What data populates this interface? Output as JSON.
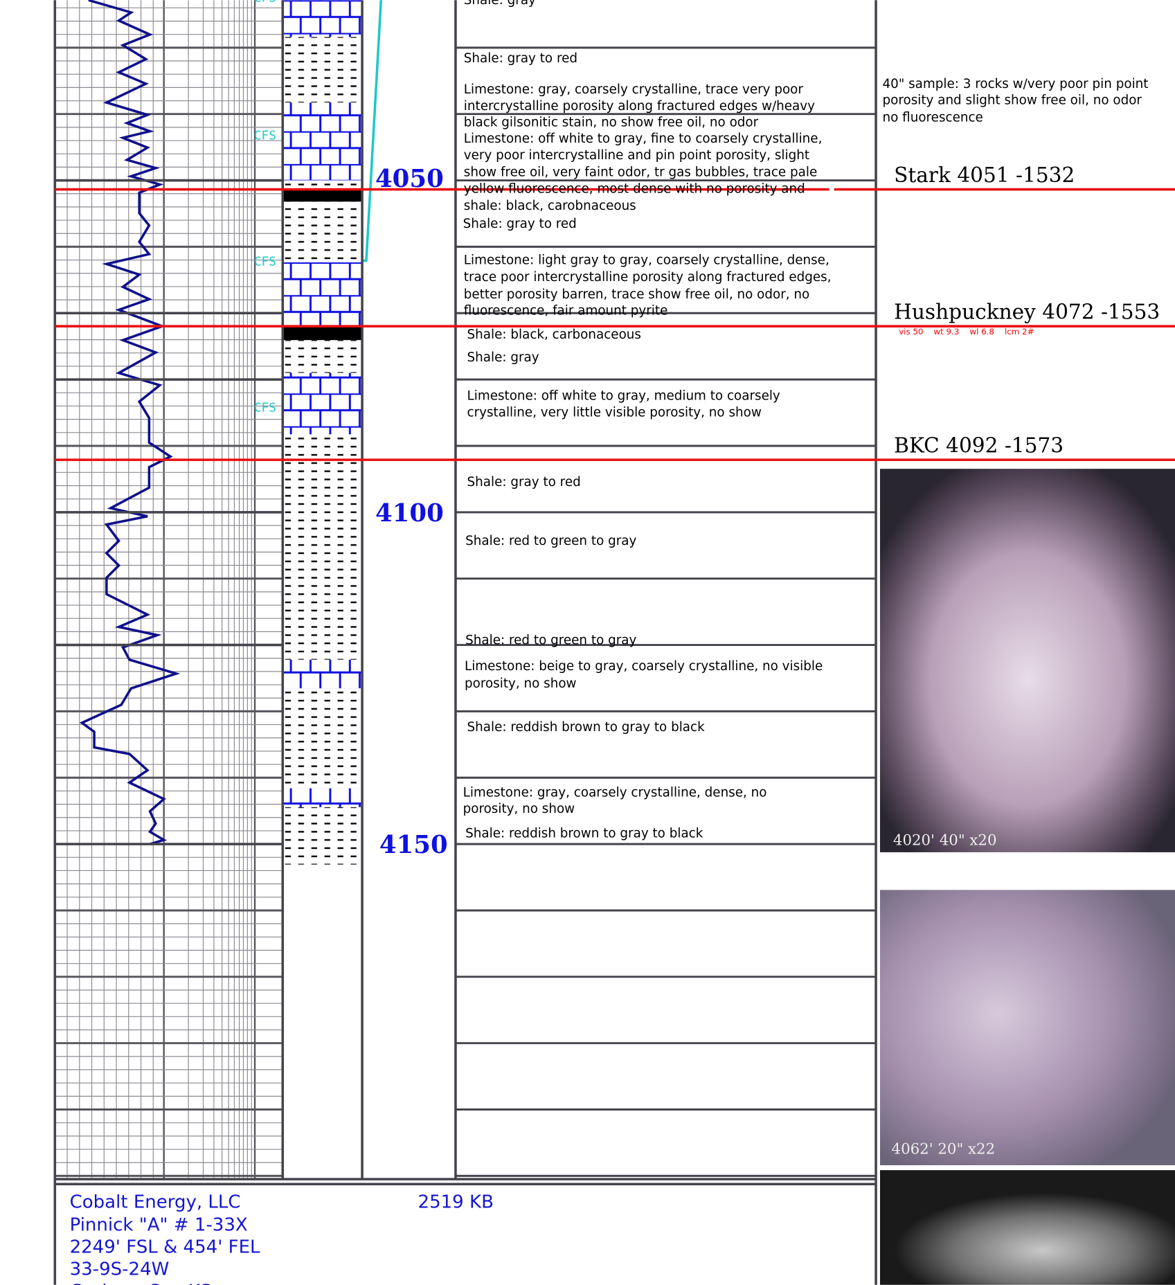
{
  "depth_labels": [
    "4050",
    "4100",
    "4150"
  ],
  "cfs_labels": [
    "CFS",
    "CFS",
    "CFS",
    "CFS"
  ],
  "descriptions": [
    [
      "Shale: gray"
    ],
    [
      "Shale: gray to red"
    ],
    [
      "Limestone: gray, coarsely crystalline, trace very poor",
      "intercrystalline porosity along fractured edges w/heavy",
      "black gilsonitic stain, no show free oil, no odor"
    ],
    [
      "Limestone: off white to gray, fine to coarsely crystalline,",
      "very poor intercrystalline and pin point porosity, slight",
      "show free oil, very faint odor, tr gas bubbles, trace pale",
      "yellow fluorescence, most dense with no porosity and",
      "shale: black, carobnaceous"
    ],
    [
      "Shale: gray to red"
    ],
    [
      "Limestone: light gray to gray, coarsely crystalline, dense,",
      "trace poor intercrystalline porosity along fractured edges,",
      "better porosity barren, trace show free oil, no odor, no",
      "fluorescence, fair amount pyrite"
    ],
    [
      "Shale: black, carbonaceous"
    ],
    [
      "Shale: gray"
    ],
    [
      "Limestone: off white to gray, medium to coarsely",
      "crystalline, very little visible porosity, no show"
    ],
    [
      "Shale: gray to red"
    ],
    [
      "Shale: red to green to gray"
    ],
    [
      "Shale: red to green to gray"
    ],
    [
      "Limestone: beige to gray, coarsely crystalline, no visible",
      "porosity, no show"
    ],
    [
      "Shale: reddish brown to gray to black"
    ],
    [
      "Limestone: gray, coarsely crystalline, dense, no",
      "porosity, no show"
    ],
    [
      "Shale: reddish brown to gray to black"
    ]
  ],
  "sample_note": [
    "40\" sample: 3 rocks w/very poor pin point",
    "porosity and slight show free oil, no odor",
    "no fluorescence"
  ],
  "tops": [
    "Stark 4051 -1532",
    "Hushpuckney 4072 -1553",
    "BKC 4092 -1573"
  ],
  "mud_properties": "vis 50    wt 9.3    wl 6.8    lcm 2#",
  "photo_captions": [
    "4020' 40\" x20",
    "4062' 20\" x22"
  ],
  "header": {
    "lines": [
      "Cobalt Energy, LLC",
      "Pinnick \"A\" # 1-33X",
      "2249' FSL & 454' FEL",
      "33-9S-24W",
      "Graham Co., KS"
    ],
    "elevation": "2519 KB"
  }
}
